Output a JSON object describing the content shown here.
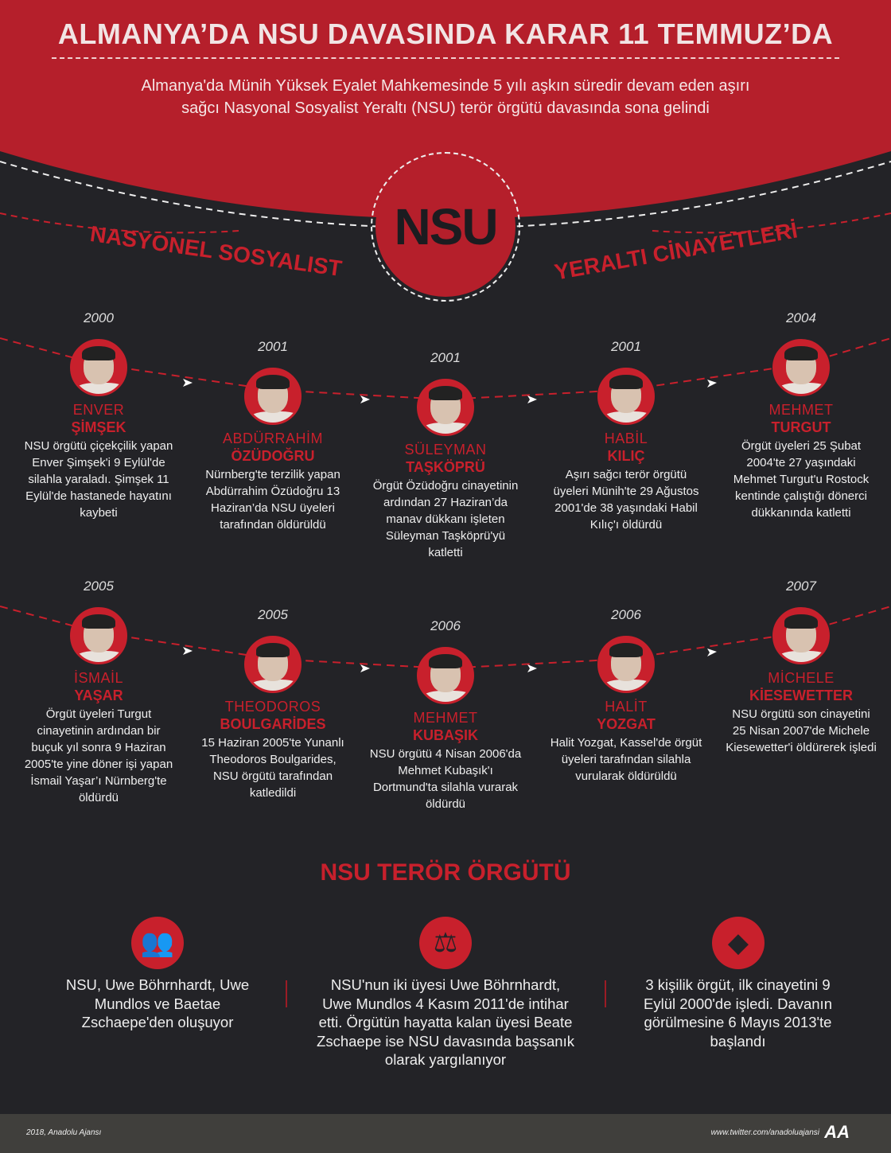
{
  "header": {
    "title": "ALMANYA’DA NSU DAVASINDA KARAR 11 TEMMUZ’DA",
    "subtitle": "Almanya'da Münih Yüksek Eyalet Mahkemesinde 5 yılı aşkın süredir devam eden aşırı sağcı Nasyonal Sosyalist Yeraltı (NSU) terör örgütü davasında sona gelindi"
  },
  "logo_text": "NSU",
  "arc_left": "NASYONEL SOSYALIST",
  "arc_right": "YERALTI CİNAYETLERİ",
  "colors": {
    "red": "#c8202c",
    "dark": "#232327",
    "header_red": "#b51f2b"
  },
  "victims": [
    {
      "year": "2000",
      "first": "ENVER",
      "last": "ŞİMŞEK",
      "desc": "NSU örgütü çiçekçilik yapan Enver Şimşek'i 9 Eylül'de silahla yaraladı. Şimşek 11 Eylül'de hastanede hayatını kaybeti"
    },
    {
      "year": "2001",
      "first": "ABDÜRRAHİM",
      "last": "ÖZÜDOĞRU",
      "desc": "Nürnberg'te terzilik yapan Abdürrahim Özüdoğru 13 Haziran’da NSU üyeleri tarafından öldürüldü"
    },
    {
      "year": "2001",
      "first": "SÜLEYMAN",
      "last": "TAŞKÖPRÜ",
      "desc": "Örgüt Özüdoğru cinayetinin ardından 27 Haziran’da manav dükkanı işleten Süleyman Taşköprü'yü katletti"
    },
    {
      "year": "2001",
      "first": "HABİL",
      "last": "KILIÇ",
      "desc": "Aşırı sağcı terör örgütü üyeleri Münih'te 29 Ağustos 2001'de 38 yaşındaki Habil Kılıç'ı öldürdü"
    },
    {
      "year": "2004",
      "first": "MEHMET",
      "last": "TURGUT",
      "desc": "Örgüt üyeleri 25 Şubat 2004'te 27 yaşındaki Mehmet Turgut'u Rostock kentinde çalıştığı dönerci dükkanında katletti"
    },
    {
      "year": "2005",
      "first": "İSMAİL",
      "last": "YAŞAR",
      "desc": "Örgüt üyeleri Turgut cinayetinin ardından bir buçuk yıl sonra 9 Haziran 2005'te yine döner işi yapan İsmail Yaşar’ı Nürnberg'te öldürdü"
    },
    {
      "year": "2005",
      "first": "THEODOROS",
      "last": "BOULGARİDES",
      "desc": "15 Haziran 2005'te Yunanlı Theodoros Boulgarides, NSU örgütü tarafından katledildi"
    },
    {
      "year": "2006",
      "first": "MEHMET",
      "last": "KUBAŞIK",
      "desc": "NSU örgütü 4 Nisan 2006'da Mehmet Kubaşık'ı Dortmund'ta silahla vurarak öldürdü"
    },
    {
      "year": "2006",
      "first": "HALİT",
      "last": "YOZGAT",
      "desc": "Halit Yozgat, Kassel'de örgüt üyeleri tarafından silahla vurularak öldürüldü"
    },
    {
      "year": "2007",
      "first": "MİCHELE",
      "last": "KİESEWETTER",
      "desc": "NSU örgütü son cinayetini 25 Nisan 2007'de Michele Kiesewetter'i öldürerek işledi"
    }
  ],
  "bottom": {
    "title": "NSU TERÖR ÖRGÜTÜ",
    "items": [
      {
        "icon": "group-icon",
        "text": "NSU, Uwe Böhrnhardt, Uwe Mundlos ve Baetae Zschaepe'den oluşuyor"
      },
      {
        "icon": "gavel-icon",
        "text": "NSU'nun iki üyesi Uwe Böhrnhardt, Uwe Mundlos 4 Kasım 2011'de intihar etti. Örgütün hayatta kalan üyesi Beate Zschaepe ise NSU davasında başsanık olarak yargılanıyor"
      },
      {
        "icon": "gun-icon",
        "text": "3 kişilik örgüt, ilk cinayetini 9 Eylül 2000'de işledi. Davanın görülmesine 6 Mayıs 2013'te başlandı"
      }
    ]
  },
  "footer": {
    "copyright": "2018, Anadolu Ajansı",
    "twitter": "www.twitter.com/anadoluajansi",
    "logo": "AA"
  }
}
